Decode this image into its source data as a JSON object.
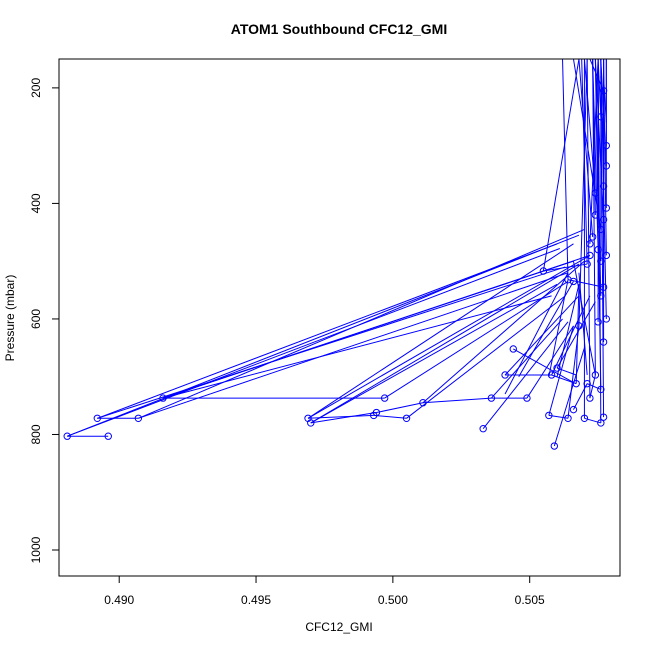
{
  "chart_data": {
    "type": "line",
    "title": "ATOM1 Southbound CFC12_GMI",
    "xlabel": "CFC12_GMI",
    "ylabel": "Pressure (mbar)",
    "xlim": [
      0.4878,
      0.5083
    ],
    "ylim": [
      1045,
      150
    ],
    "y_reversed": true,
    "grid": false,
    "legend": "none",
    "marker": "open-circle",
    "color": "#0000ff",
    "x_ticks": [
      0.49,
      0.495,
      0.5,
      0.505
    ],
    "x_tick_labels": [
      "0.490",
      "0.495",
      "0.500",
      "0.505"
    ],
    "y_ticks": [
      200,
      400,
      600,
      800,
      1000
    ],
    "y_tick_labels": [
      "200",
      "400",
      "600",
      "800",
      "1000"
    ],
    "series": [
      {
        "values": [
          {
            "x": 0.5077,
            "y": 205
          },
          {
            "x": 0.5076,
            "y": 250
          },
          {
            "x": 0.5078,
            "y": 300
          },
          {
            "x": 0.5078,
            "y": 335
          },
          {
            "x": 0.5077,
            "y": 370
          },
          {
            "x": 0.5074,
            "y": 382
          },
          {
            "x": 0.5078,
            "y": 408
          },
          {
            "x": 0.5077,
            "y": 428
          },
          {
            "x": 0.5076,
            "y": 445
          },
          {
            "x": 0.5073,
            "y": 458
          },
          {
            "x": 0.5072,
            "y": 470
          },
          {
            "x": 0.5075,
            "y": 480
          },
          {
            "x": 0.5078,
            "y": 490
          },
          {
            "x": 0.5076,
            "y": 500
          },
          {
            "x": 0.5071,
            "y": 505
          },
          {
            "x": 0.5055,
            "y": 517
          },
          {
            "x": 0.5064,
            "y": 532
          },
          {
            "x": 0.5077,
            "y": 545
          },
          {
            "x": 0.5076,
            "y": 560
          },
          {
            "x": 0.5078,
            "y": 600
          },
          {
            "x": 0.5075,
            "y": 605
          },
          {
            "x": 0.5068,
            "y": 612
          },
          {
            "x": 0.5077,
            "y": 640
          },
          {
            "x": 0.5044,
            "y": 652
          },
          {
            "x": 0.506,
            "y": 685
          },
          {
            "x": 0.5041,
            "y": 697
          },
          {
            "x": 0.5058,
            "y": 697
          },
          {
            "x": 0.5074,
            "y": 697
          },
          {
            "x": 0.5067,
            "y": 712
          },
          {
            "x": 0.5071,
            "y": 712
          },
          {
            "x": 0.5076,
            "y": 722
          },
          {
            "x": 0.4916,
            "y": 737
          },
          {
            "x": 0.4997,
            "y": 737
          },
          {
            "x": 0.5036,
            "y": 737
          },
          {
            "x": 0.5049,
            "y": 737
          },
          {
            "x": 0.5072,
            "y": 737
          },
          {
            "x": 0.5011,
            "y": 745
          },
          {
            "x": 0.5066,
            "y": 757
          },
          {
            "x": 0.4994,
            "y": 762
          },
          {
            "x": 0.4993,
            "y": 767
          },
          {
            "x": 0.5057,
            "y": 767
          },
          {
            "x": 0.4892,
            "y": 772
          },
          {
            "x": 0.4907,
            "y": 772
          },
          {
            "x": 0.4969,
            "y": 772
          },
          {
            "x": 0.5005,
            "y": 772
          },
          {
            "x": 0.5064,
            "y": 772
          },
          {
            "x": 0.507,
            "y": 772
          },
          {
            "x": 0.497,
            "y": 780
          },
          {
            "x": 0.5076,
            "y": 780
          },
          {
            "x": 0.5033,
            "y": 790
          },
          {
            "x": 0.4881,
            "y": 803
          },
          {
            "x": 0.4896,
            "y": 803
          },
          {
            "x": 0.5059,
            "y": 820
          },
          {
            "x": 0.5077,
            "y": 770
          },
          {
            "x": 0.5072,
            "y": 490
          },
          {
            "x": 0.5066,
            "y": 535
          },
          {
            "x": 0.5074,
            "y": 420
          }
        ],
        "segments": [
          [
            0.5072,
            150,
            0.5077,
            205
          ],
          [
            0.5075,
            150,
            0.5076,
            250
          ],
          [
            0.5078,
            150,
            0.5078,
            300
          ],
          [
            0.5076,
            150,
            0.5078,
            335
          ],
          [
            0.5077,
            150,
            0.5077,
            370
          ],
          [
            0.507,
            150,
            0.5074,
            382
          ],
          [
            0.5078,
            150,
            0.5078,
            408
          ],
          [
            0.5074,
            150,
            0.5077,
            428
          ],
          [
            0.5066,
            150,
            0.5076,
            445
          ],
          [
            0.5068,
            150,
            0.5073,
            458
          ],
          [
            0.5075,
            150,
            0.5072,
            470
          ],
          [
            0.5073,
            150,
            0.5075,
            480
          ],
          [
            0.5077,
            150,
            0.5078,
            490
          ],
          [
            0.5076,
            150,
            0.5076,
            500
          ],
          [
            0.5069,
            150,
            0.5071,
            505
          ],
          [
            0.5068,
            150,
            0.5055,
            517
          ],
          [
            0.5062,
            150,
            0.5064,
            532
          ],
          [
            0.5077,
            150,
            0.5077,
            545
          ],
          [
            0.5074,
            150,
            0.5076,
            560
          ],
          [
            0.5076,
            150,
            0.5078,
            600
          ],
          [
            0.5075,
            150,
            0.5075,
            605
          ],
          [
            0.5071,
            150,
            0.5068,
            612
          ],
          [
            0.5077,
            150,
            0.5077,
            640
          ],
          [
            0.5073,
            150,
            0.5074,
            420
          ],
          [
            0.5076,
            150,
            0.5077,
            770
          ],
          [
            0.5075,
            150,
            0.5076,
            780
          ],
          [
            0.5074,
            150,
            0.5076,
            722
          ],
          [
            0.5073,
            150,
            0.5074,
            697
          ],
          [
            0.5071,
            150,
            0.5072,
            737
          ],
          [
            0.507,
            150,
            0.507,
            772
          ],
          [
            0.5077,
            180,
            0.5078,
            260
          ],
          [
            0.5076,
            180,
            0.5077,
            310
          ],
          [
            0.5055,
            517,
            0.5071,
            505
          ],
          [
            0.5064,
            532,
            0.5077,
            545
          ],
          [
            0.4892,
            772,
            0.506,
            470
          ],
          [
            0.4907,
            772,
            0.507,
            445
          ],
          [
            0.4916,
            737,
            0.5072,
            490
          ],
          [
            0.4916,
            737,
            0.5066,
            500
          ],
          [
            0.4881,
            803,
            0.5068,
            455
          ],
          [
            0.4881,
            803,
            0.5061,
            478
          ],
          [
            0.4907,
            772,
            0.5064,
            520
          ],
          [
            0.4892,
            772,
            0.5063,
            510
          ],
          [
            0.4916,
            737,
            0.5058,
            560
          ],
          [
            0.4969,
            772,
            0.5066,
            470
          ],
          [
            0.497,
            780,
            0.506,
            540
          ],
          [
            0.497,
            780,
            0.5068,
            505
          ],
          [
            0.4969,
            772,
            0.5072,
            490
          ],
          [
            0.4997,
            737,
            0.5064,
            535
          ],
          [
            0.5011,
            745,
            0.507,
            500
          ],
          [
            0.5005,
            772,
            0.5063,
            560
          ],
          [
            0.5033,
            790,
            0.5064,
            605
          ],
          [
            0.5036,
            737,
            0.5062,
            600
          ],
          [
            0.5049,
            737,
            0.5066,
            612
          ],
          [
            0.5041,
            697,
            0.5068,
            560
          ],
          [
            0.5044,
            652,
            0.5066,
            710
          ],
          [
            0.5057,
            767,
            0.5066,
            612
          ],
          [
            0.5059,
            820,
            0.507,
            650
          ],
          [
            0.5058,
            697,
            0.5072,
            560
          ],
          [
            0.506,
            685,
            0.5074,
            570
          ],
          [
            0.5064,
            772,
            0.5068,
            612
          ],
          [
            0.5067,
            712,
            0.5068,
            540
          ],
          [
            0.4881,
            803,
            0.4896,
            803
          ],
          [
            0.4892,
            772,
            0.4907,
            772
          ],
          [
            0.4916,
            737,
            0.4997,
            737
          ],
          [
            0.4969,
            772,
            0.4993,
            767
          ],
          [
            0.4994,
            762,
            0.5011,
            745
          ],
          [
            0.5011,
            745,
            0.5036,
            737
          ],
          [
            0.5036,
            737,
            0.5049,
            737
          ],
          [
            0.497,
            780,
            0.4994,
            762
          ],
          [
            0.5005,
            772,
            0.4993,
            767
          ],
          [
            0.5066,
            757,
            0.5071,
            712
          ],
          [
            0.5057,
            767,
            0.5064,
            772
          ],
          [
            0.507,
            772,
            0.5076,
            780
          ],
          [
            0.5072,
            737,
            0.5074,
            697
          ],
          [
            0.5041,
            697,
            0.5058,
            697
          ],
          [
            0.5058,
            697,
            0.5067,
            712
          ],
          [
            0.506,
            685,
            0.5067,
            697
          ],
          [
            0.5071,
            712,
            0.5076,
            722
          ],
          [
            0.5064,
            532,
            0.5057,
            700
          ],
          [
            0.5066,
            535,
            0.5046,
            700
          ],
          [
            0.5068,
            540,
            0.506,
            700
          ],
          [
            0.5064,
            520,
            0.5041,
            730
          ],
          [
            0.5068,
            520,
            0.5071,
            697
          ],
          [
            0.5066,
            500,
            0.5074,
            697
          ]
        ]
      }
    ]
  }
}
